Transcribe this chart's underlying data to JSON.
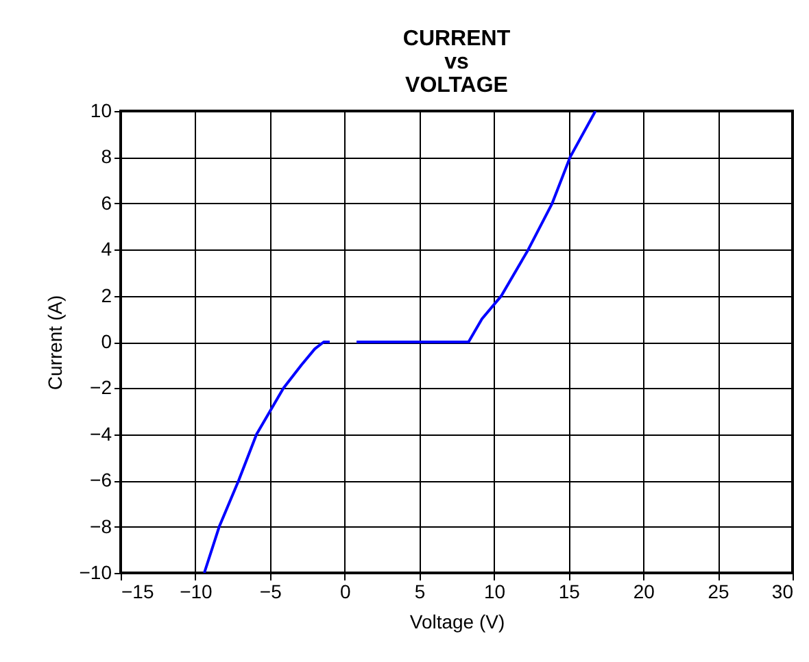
{
  "chart_data": {
    "type": "line",
    "title": "CURRENT vs VOLTAGE",
    "xlabel": "Voltage (V)",
    "ylabel": "Current (A)",
    "series": [
      {
        "color": "#0000ff",
        "x": [
          -9.4,
          -8.4,
          -7.1,
          -5.9,
          -4.1,
          -2.9,
          -2.0,
          -1.4,
          -1.0
        ],
        "values": [
          -10,
          -8,
          -6,
          -4,
          -2,
          -1,
          -0.3,
          0,
          0
        ]
      },
      {
        "color": "#0000ff",
        "x": [
          0.8,
          8.3,
          9.2,
          10.5,
          12.3,
          13.9,
          15.1,
          16.8
        ],
        "values": [
          0,
          0,
          1,
          2,
          4,
          6,
          8,
          10
        ]
      }
    ],
    "xlim": [
      -15,
      30
    ],
    "xticks": [
      -15,
      -10,
      -5,
      0,
      5,
      10,
      15,
      20,
      25,
      30
    ],
    "ylim": [
      -10,
      10
    ],
    "yticks": [
      -10,
      -8,
      -6,
      -4,
      -2,
      0,
      2,
      4,
      6,
      8,
      10
    ],
    "grid": true
  }
}
